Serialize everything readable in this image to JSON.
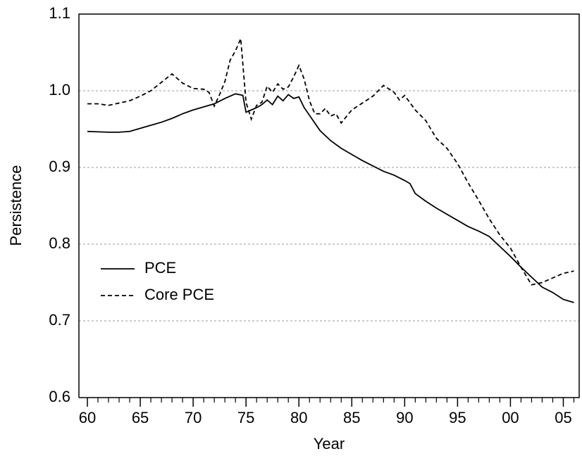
{
  "chart_data": {
    "type": "line",
    "xlabel": "Year",
    "ylabel": "Persistence",
    "xlim": [
      1959.2,
      2006.5
    ],
    "ylim": [
      0.6,
      1.1
    ],
    "xticks": [
      {
        "value": 1960,
        "label": "60"
      },
      {
        "value": 1965,
        "label": "65"
      },
      {
        "value": 1970,
        "label": "70"
      },
      {
        "value": 1975,
        "label": "75"
      },
      {
        "value": 1980,
        "label": "80"
      },
      {
        "value": 1985,
        "label": "85"
      },
      {
        "value": 1990,
        "label": "90"
      },
      {
        "value": 1995,
        "label": "95"
      },
      {
        "value": 2000,
        "label": "00"
      },
      {
        "value": 2005,
        "label": "05"
      }
    ],
    "xminorticks": [
      1961,
      1962,
      1963,
      1964,
      1966,
      1967,
      1968,
      1969,
      1971,
      1972,
      1973,
      1974,
      1976,
      1977,
      1978,
      1979,
      1981,
      1982,
      1983,
      1984,
      1986,
      1987,
      1988,
      1989,
      1991,
      1992,
      1993,
      1994,
      1996,
      1997,
      1998,
      1999,
      2001,
      2002,
      2003,
      2004,
      2006
    ],
    "yticks": [
      0.6,
      0.7,
      0.8,
      0.9,
      {
        "value": 1,
        "label": "1.0"
      },
      1.1
    ],
    "grid": true,
    "legend": "lower-left",
    "series": [
      {
        "name": "PCE",
        "color": "#000000",
        "dash": "solid",
        "x": [
          1960,
          1962,
          1963,
          1964,
          1965,
          1966,
          1967,
          1968,
          1969,
          1970,
          1971,
          1972,
          1973,
          1974,
          1974.7,
          1975,
          1975.5,
          1976,
          1976.5,
          1977,
          1977.5,
          1978,
          1978.5,
          1979,
          1979.5,
          1980,
          1980.5,
          1981,
          1982,
          1983,
          1984,
          1985,
          1986,
          1987,
          1988,
          1989,
          1990,
          1990.5,
          1991,
          1992,
          1993,
          1994,
          1995,
          1996,
          1997,
          1998,
          1999,
          2000,
          2001,
          2002,
          2003,
          2004,
          2005,
          2006
        ],
        "values": [
          0.947,
          0.946,
          0.946,
          0.947,
          0.951,
          0.955,
          0.959,
          0.964,
          0.97,
          0.975,
          0.979,
          0.983,
          0.99,
          0.996,
          0.994,
          0.972,
          0.975,
          0.978,
          0.982,
          0.988,
          0.982,
          0.993,
          0.987,
          0.995,
          0.99,
          0.992,
          0.978,
          0.968,
          0.948,
          0.935,
          0.925,
          0.917,
          0.909,
          0.902,
          0.895,
          0.89,
          0.883,
          0.879,
          0.866,
          0.856,
          0.847,
          0.839,
          0.831,
          0.823,
          0.817,
          0.81,
          0.797,
          0.784,
          0.77,
          0.757,
          0.744,
          0.737,
          0.728,
          0.724
        ]
      },
      {
        "name": "Core PCE",
        "color": "#000000",
        "dash": "dashed",
        "x": [
          1960,
          1961,
          1962,
          1963,
          1964,
          1965,
          1966,
          1967,
          1968,
          1969,
          1970,
          1971,
          1971.5,
          1972,
          1972.5,
          1973,
          1973.5,
          1974,
          1974.5,
          1975,
          1975.5,
          1976,
          1976.5,
          1977,
          1977.5,
          1978,
          1978.5,
          1979,
          1979.5,
          1980,
          1980.5,
          1981,
          1981.5,
          1982,
          1982.5,
          1983,
          1983.5,
          1984,
          1985,
          1986,
          1987,
          1988,
          1989,
          1989.5,
          1990,
          1991,
          1992,
          1993,
          1994,
          1995,
          1996,
          1997,
          1998,
          1999,
          2000,
          2001,
          2002,
          2003,
          2004,
          2005,
          2006
        ],
        "values": [
          0.983,
          0.983,
          0.981,
          0.984,
          0.987,
          0.993,
          1.0,
          1.011,
          1.022,
          1.01,
          1.003,
          1.002,
          0.998,
          0.98,
          0.995,
          1.012,
          1.04,
          1.052,
          1.068,
          0.985,
          0.963,
          0.981,
          0.985,
          1.006,
          0.998,
          1.009,
          1.002,
          1.005,
          1.018,
          1.033,
          1.015,
          0.987,
          0.97,
          0.97,
          0.977,
          0.967,
          0.97,
          0.958,
          0.975,
          0.984,
          0.993,
          1.007,
          0.998,
          0.988,
          0.994,
          0.975,
          0.961,
          0.938,
          0.925,
          0.905,
          0.88,
          0.857,
          0.833,
          0.812,
          0.795,
          0.77,
          0.747,
          0.75,
          0.756,
          0.762,
          0.765
        ]
      }
    ]
  }
}
